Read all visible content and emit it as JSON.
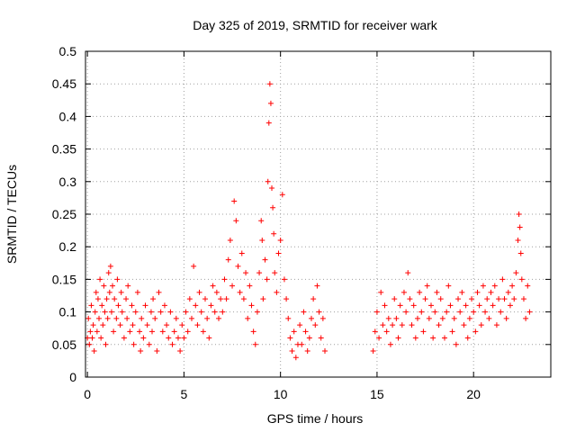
{
  "chart_data": {
    "type": "scatter",
    "title": "Day 325 of 2019, SRMTID for receiver wark",
    "xlabel": "GPS time / hours",
    "ylabel": "SRMTID / TECUs",
    "xlim": [
      -0.1,
      24.0
    ],
    "ylim": [
      0,
      0.5
    ],
    "xticks": [
      0,
      5,
      10,
      15,
      20
    ],
    "xtick_labels": [
      "0",
      "5",
      "10",
      "15",
      "20"
    ],
    "yticks": [
      0,
      0.05,
      0.1,
      0.15,
      0.2,
      0.25,
      0.3,
      0.35,
      0.4,
      0.45,
      0.5
    ],
    "ytick_labels": [
      "0",
      "0.05",
      "0.1",
      "0.15",
      "0.2",
      "0.25",
      "0.3",
      "0.35",
      "0.4",
      "0.45",
      "0.5"
    ],
    "grid": true,
    "marker": "+",
    "color": "#ff0000",
    "series": [
      {
        "name": "SRMTID",
        "points": [
          [
            0.0,
            0.06
          ],
          [
            0.05,
            0.09
          ],
          [
            0.1,
            0.05
          ],
          [
            0.15,
            0.07
          ],
          [
            0.2,
            0.11
          ],
          [
            0.25,
            0.06
          ],
          [
            0.3,
            0.08
          ],
          [
            0.35,
            0.04
          ],
          [
            0.4,
            0.1
          ],
          [
            0.45,
            0.13
          ],
          [
            0.5,
            0.07
          ],
          [
            0.55,
            0.12
          ],
          [
            0.6,
            0.09
          ],
          [
            0.65,
            0.15
          ],
          [
            0.7,
            0.06
          ],
          [
            0.75,
            0.11
          ],
          [
            0.8,
            0.08
          ],
          [
            0.85,
            0.14
          ],
          [
            0.9,
            0.1
          ],
          [
            0.95,
            0.05
          ],
          [
            1.0,
            0.12
          ],
          [
            1.05,
            0.09
          ],
          [
            1.1,
            0.16
          ],
          [
            1.15,
            0.13
          ],
          [
            1.2,
            0.17
          ],
          [
            1.25,
            0.1
          ],
          [
            1.3,
            0.14
          ],
          [
            1.35,
            0.07
          ],
          [
            1.4,
            0.12
          ],
          [
            1.5,
            0.09
          ],
          [
            1.55,
            0.15
          ],
          [
            1.6,
            0.11
          ],
          [
            1.7,
            0.08
          ],
          [
            1.75,
            0.13
          ],
          [
            1.8,
            0.1
          ],
          [
            1.9,
            0.06
          ],
          [
            2.0,
            0.12
          ],
          [
            2.05,
            0.09
          ],
          [
            2.1,
            0.14
          ],
          [
            2.2,
            0.07
          ],
          [
            2.3,
            0.11
          ],
          [
            2.35,
            0.08
          ],
          [
            2.4,
            0.05
          ],
          [
            2.5,
            0.1
          ],
          [
            2.6,
            0.13
          ],
          [
            2.7,
            0.07
          ],
          [
            2.75,
            0.04
          ],
          [
            2.8,
            0.09
          ],
          [
            2.9,
            0.06
          ],
          [
            3.0,
            0.11
          ],
          [
            3.1,
            0.08
          ],
          [
            3.2,
            0.05
          ],
          [
            3.3,
            0.1
          ],
          [
            3.35,
            0.07
          ],
          [
            3.4,
            0.12
          ],
          [
            3.5,
            0.09
          ],
          [
            3.6,
            0.04
          ],
          [
            3.7,
            0.13
          ],
          [
            3.8,
            0.1
          ],
          [
            3.9,
            0.07
          ],
          [
            4.0,
            0.11
          ],
          [
            4.1,
            0.08
          ],
          [
            4.2,
            0.06
          ],
          [
            4.3,
            0.1
          ],
          [
            4.4,
            0.05
          ],
          [
            4.5,
            0.07
          ],
          [
            4.6,
            0.09
          ],
          [
            4.7,
            0.06
          ],
          [
            4.8,
            0.04
          ],
          [
            4.9,
            0.08
          ],
          [
            5.0,
            0.06
          ],
          [
            5.1,
            0.1
          ],
          [
            5.2,
            0.07
          ],
          [
            5.3,
            0.12
          ],
          [
            5.4,
            0.09
          ],
          [
            5.5,
            0.17
          ],
          [
            5.6,
            0.11
          ],
          [
            5.7,
            0.08
          ],
          [
            5.8,
            0.13
          ],
          [
            5.9,
            0.1
          ],
          [
            6.0,
            0.07
          ],
          [
            6.1,
            0.12
          ],
          [
            6.2,
            0.09
          ],
          [
            6.3,
            0.06
          ],
          [
            6.4,
            0.11
          ],
          [
            6.5,
            0.14
          ],
          [
            6.6,
            0.1
          ],
          [
            6.7,
            0.13
          ],
          [
            6.8,
            0.09
          ],
          [
            6.9,
            0.12
          ],
          [
            7.0,
            0.1
          ],
          [
            7.1,
            0.15
          ],
          [
            7.2,
            0.12
          ],
          [
            7.3,
            0.18
          ],
          [
            7.4,
            0.21
          ],
          [
            7.5,
            0.14
          ],
          [
            7.6,
            0.27
          ],
          [
            7.7,
            0.24
          ],
          [
            7.8,
            0.17
          ],
          [
            7.9,
            0.13
          ],
          [
            8.0,
            0.19
          ],
          [
            8.1,
            0.12
          ],
          [
            8.2,
            0.16
          ],
          [
            8.3,
            0.09
          ],
          [
            8.4,
            0.14
          ],
          [
            8.5,
            0.11
          ],
          [
            8.6,
            0.07
          ],
          [
            8.7,
            0.05
          ],
          [
            8.8,
            0.1
          ],
          [
            8.9,
            0.16
          ],
          [
            9.0,
            0.24
          ],
          [
            9.05,
            0.21
          ],
          [
            9.1,
            0.12
          ],
          [
            9.2,
            0.18
          ],
          [
            9.3,
            0.15
          ],
          [
            9.35,
            0.3
          ],
          [
            9.4,
            0.39
          ],
          [
            9.45,
            0.45
          ],
          [
            9.5,
            0.42
          ],
          [
            9.55,
            0.29
          ],
          [
            9.6,
            0.26
          ],
          [
            9.65,
            0.22
          ],
          [
            9.7,
            0.16
          ],
          [
            9.8,
            0.13
          ],
          [
            9.9,
            0.19
          ],
          [
            10.0,
            0.21
          ],
          [
            10.1,
            0.28
          ],
          [
            10.2,
            0.15
          ],
          [
            10.3,
            0.12
          ],
          [
            10.4,
            0.09
          ],
          [
            10.5,
            0.06
          ],
          [
            10.6,
            0.04
          ],
          [
            10.7,
            0.07
          ],
          [
            10.8,
            0.03
          ],
          [
            10.9,
            0.05
          ],
          [
            11.0,
            0.08
          ],
          [
            11.1,
            0.05
          ],
          [
            11.2,
            0.1
          ],
          [
            11.3,
            0.07
          ],
          [
            11.4,
            0.04
          ],
          [
            11.5,
            0.06
          ],
          [
            11.6,
            0.09
          ],
          [
            11.7,
            0.12
          ],
          [
            11.8,
            0.08
          ],
          [
            11.9,
            0.14
          ],
          [
            12.0,
            0.1
          ],
          [
            12.1,
            0.06
          ],
          [
            12.2,
            0.09
          ],
          [
            12.3,
            0.04
          ],
          [
            14.8,
            0.04
          ],
          [
            14.9,
            0.07
          ],
          [
            15.0,
            0.1
          ],
          [
            15.1,
            0.06
          ],
          [
            15.2,
            0.13
          ],
          [
            15.3,
            0.08
          ],
          [
            15.4,
            0.11
          ],
          [
            15.5,
            0.07
          ],
          [
            15.6,
            0.09
          ],
          [
            15.7,
            0.05
          ],
          [
            15.8,
            0.08
          ],
          [
            15.9,
            0.12
          ],
          [
            16.0,
            0.09
          ],
          [
            16.1,
            0.06
          ],
          [
            16.2,
            0.11
          ],
          [
            16.3,
            0.08
          ],
          [
            16.4,
            0.13
          ],
          [
            16.5,
            0.1
          ],
          [
            16.6,
            0.16
          ],
          [
            16.7,
            0.12
          ],
          [
            16.8,
            0.08
          ],
          [
            16.9,
            0.11
          ],
          [
            17.0,
            0.06
          ],
          [
            17.1,
            0.09
          ],
          [
            17.2,
            0.13
          ],
          [
            17.3,
            0.1
          ],
          [
            17.4,
            0.07
          ],
          [
            17.5,
            0.12
          ],
          [
            17.6,
            0.14
          ],
          [
            17.7,
            0.09
          ],
          [
            17.8,
            0.11
          ],
          [
            17.9,
            0.06
          ],
          [
            18.0,
            0.1
          ],
          [
            18.1,
            0.13
          ],
          [
            18.2,
            0.08
          ],
          [
            18.3,
            0.12
          ],
          [
            18.4,
            0.09
          ],
          [
            18.5,
            0.06
          ],
          [
            18.6,
            0.1
          ],
          [
            18.7,
            0.14
          ],
          [
            18.8,
            0.11
          ],
          [
            18.9,
            0.07
          ],
          [
            19.0,
            0.09
          ],
          [
            19.1,
            0.05
          ],
          [
            19.2,
            0.12
          ],
          [
            19.3,
            0.1
          ],
          [
            19.4,
            0.13
          ],
          [
            19.5,
            0.08
          ],
          [
            19.6,
            0.11
          ],
          [
            19.7,
            0.06
          ],
          [
            19.8,
            0.09
          ],
          [
            19.9,
            0.12
          ],
          [
            20.0,
            0.1
          ],
          [
            20.1,
            0.07
          ],
          [
            20.2,
            0.13
          ],
          [
            20.3,
            0.11
          ],
          [
            20.4,
            0.08
          ],
          [
            20.5,
            0.14
          ],
          [
            20.6,
            0.1
          ],
          [
            20.7,
            0.12
          ],
          [
            20.8,
            0.09
          ],
          [
            20.9,
            0.13
          ],
          [
            21.0,
            0.11
          ],
          [
            21.1,
            0.14
          ],
          [
            21.2,
            0.08
          ],
          [
            21.3,
            0.12
          ],
          [
            21.4,
            0.1
          ],
          [
            21.5,
            0.15
          ],
          [
            21.6,
            0.12
          ],
          [
            21.7,
            0.09
          ],
          [
            21.8,
            0.13
          ],
          [
            21.9,
            0.11
          ],
          [
            22.0,
            0.14
          ],
          [
            22.1,
            0.12
          ],
          [
            22.2,
            0.16
          ],
          [
            22.3,
            0.21
          ],
          [
            22.35,
            0.25
          ],
          [
            22.4,
            0.23
          ],
          [
            22.45,
            0.19
          ],
          [
            22.5,
            0.15
          ],
          [
            22.6,
            0.12
          ],
          [
            22.7,
            0.09
          ],
          [
            22.8,
            0.14
          ],
          [
            22.9,
            0.1
          ]
        ]
      }
    ]
  }
}
